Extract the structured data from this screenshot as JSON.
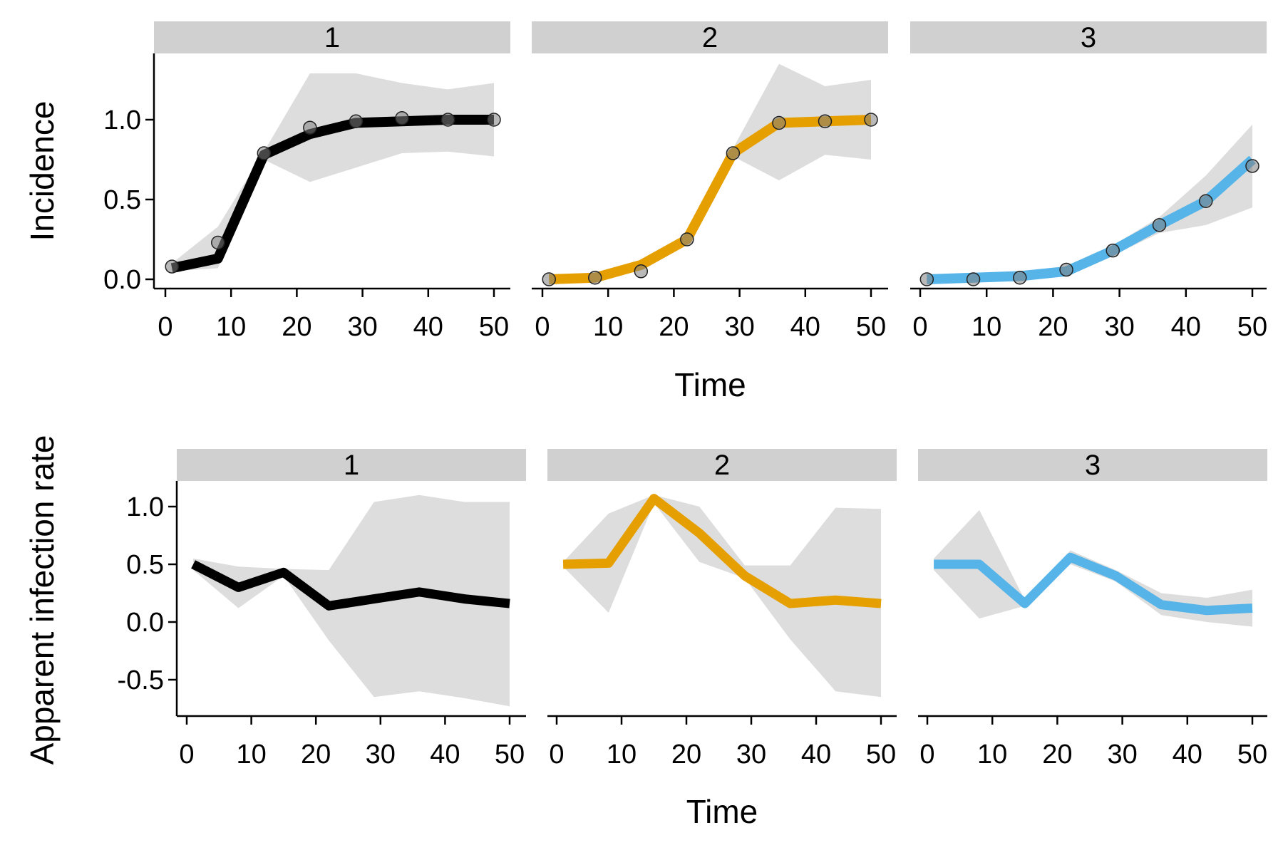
{
  "chart_data": [
    {
      "type": "line",
      "ylabel": "Incidence",
      "xlabel": "Time",
      "xlim": [
        0,
        50
      ],
      "xticks": [
        0,
        10,
        20,
        30,
        40,
        50
      ],
      "ylim": [
        -0.05,
        1.38
      ],
      "yticks": [
        0.0,
        0.5,
        1.0
      ],
      "ytick_labels": [
        "0.0",
        "0.5",
        "1.0"
      ],
      "ribbon_color": "#d9d9d9",
      "panels": [
        {
          "label": "1",
          "color": "#000000",
          "x": [
            1,
            8,
            15,
            22,
            29,
            36,
            43,
            50
          ],
          "fit": [
            0.07,
            0.13,
            0.78,
            0.91,
            0.98,
            0.99,
            1.0,
            1.0
          ],
          "lower": [
            0.05,
            0.07,
            0.75,
            0.61,
            0.7,
            0.79,
            0.8,
            0.77
          ],
          "upper": [
            0.1,
            0.33,
            0.8,
            1.29,
            1.29,
            1.23,
            1.19,
            1.23
          ],
          "observed": [
            0.08,
            0.23,
            0.79,
            0.95,
            0.99,
            1.01,
            1.0,
            1.0
          ]
        },
        {
          "label": "2",
          "color": "#e69f00",
          "x": [
            1,
            8,
            15,
            22,
            29,
            36,
            43,
            50
          ],
          "fit": [
            0.0,
            0.01,
            0.09,
            0.25,
            0.79,
            0.98,
            0.99,
            1.0
          ],
          "lower": [
            -0.01,
            -0.01,
            0.07,
            0.24,
            0.77,
            0.62,
            0.78,
            0.75
          ],
          "upper": [
            0.01,
            0.03,
            0.11,
            0.27,
            0.82,
            1.35,
            1.21,
            1.25
          ],
          "observed": [
            0.0,
            0.01,
            0.05,
            0.25,
            0.79,
            0.98,
            0.99,
            1.0
          ]
        },
        {
          "label": "3",
          "color": "#56b4e9",
          "x": [
            1,
            8,
            15,
            22,
            29,
            36,
            43,
            50
          ],
          "fit": [
            0.0,
            0.01,
            0.02,
            0.05,
            0.18,
            0.34,
            0.49,
            0.75
          ],
          "lower": [
            -0.01,
            -0.01,
            0.0,
            0.03,
            0.15,
            0.29,
            0.34,
            0.45
          ],
          "upper": [
            0.01,
            0.02,
            0.03,
            0.07,
            0.21,
            0.39,
            0.65,
            0.97
          ],
          "observed": [
            0.0,
            0.0,
            0.01,
            0.06,
            0.18,
            0.34,
            0.49,
            0.71
          ]
        }
      ]
    },
    {
      "type": "line",
      "ylabel": "Apparent infection rate",
      "xlabel": "Time",
      "xlim": [
        0,
        50
      ],
      "xticks": [
        0,
        10,
        20,
        30,
        40,
        50
      ],
      "ylim": [
        -0.8,
        1.2
      ],
      "yticks": [
        -0.5,
        0.0,
        0.5,
        1.0
      ],
      "ytick_labels": [
        "-0.5",
        "0.0",
        "0.5",
        "1.0"
      ],
      "ribbon_color": "#d9d9d9",
      "panels": [
        {
          "label": "1",
          "color": "#000000",
          "x": [
            1,
            8,
            15,
            22,
            29,
            36,
            43,
            50
          ],
          "fit": [
            0.5,
            0.3,
            0.43,
            0.14,
            0.2,
            0.26,
            0.2,
            0.16
          ],
          "lower": [
            0.45,
            0.12,
            0.4,
            -0.16,
            -0.65,
            -0.6,
            -0.66,
            -0.73
          ],
          "upper": [
            0.55,
            0.48,
            0.46,
            0.45,
            1.04,
            1.1,
            1.04,
            1.04
          ]
        },
        {
          "label": "2",
          "color": "#e69f00",
          "x": [
            1,
            8,
            15,
            22,
            29,
            36,
            43,
            50
          ],
          "fit": [
            0.5,
            0.51,
            1.07,
            0.77,
            0.4,
            0.16,
            0.19,
            0.16
          ],
          "lower": [
            0.48,
            0.08,
            1.03,
            0.52,
            0.38,
            -0.15,
            -0.6,
            -0.65
          ],
          "upper": [
            0.52,
            0.94,
            1.1,
            1.0,
            0.49,
            0.49,
            0.99,
            0.98
          ]
        },
        {
          "label": "3",
          "color": "#56b4e9",
          "x": [
            1,
            8,
            15,
            22,
            29,
            36,
            43,
            50
          ],
          "fit": [
            0.5,
            0.5,
            0.16,
            0.56,
            0.4,
            0.15,
            0.1,
            0.12
          ],
          "lower": [
            0.45,
            0.03,
            0.14,
            0.5,
            0.35,
            0.06,
            0.0,
            -0.04
          ],
          "upper": [
            0.55,
            0.97,
            0.19,
            0.62,
            0.45,
            0.25,
            0.21,
            0.28
          ]
        }
      ]
    }
  ]
}
